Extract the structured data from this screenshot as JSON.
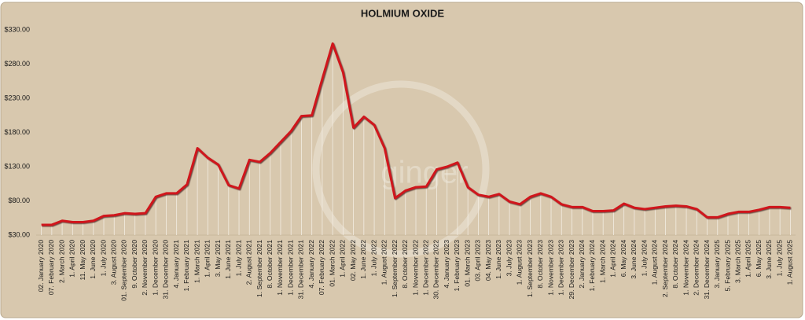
{
  "chart_data": {
    "type": "line",
    "title": "HOLMIUM OXIDE",
    "watermark": "ginger",
    "categories": [
      "02. January 2020",
      "07. February 2020",
      "2. March 2020",
      "1. April 2020",
      "11. May 2020",
      "1. June 2020",
      "1. July 2020",
      "3. August 2020",
      "01. September 2020",
      "9. October 2020",
      "2. November 2020",
      "1. December 2020",
      "31. December 2020",
      "4. January 2021",
      "1. February 2021",
      "1. March 2021",
      "1. April 2021",
      "3. May 2021",
      "1. June 2021",
      "1. July 2021",
      "2. August 2021",
      "1. September 2021",
      "8. October 2021",
      "1. November 2021",
      "1. December 2021",
      "31. December 2021",
      "4. January 2022",
      "07. February 2022",
      "01. March 2022",
      "1. April 2022",
      "02. May 2022",
      "1. June 2022",
      "1. July 2022",
      "1. August 2022",
      "1. September 2022",
      "8. October 2022",
      "1. November 2022",
      "1. December 2022",
      "30. December 2022",
      "4. January 2023",
      "1. February 2023",
      "01. March 2023",
      "03. April 2023",
      "04. May 2023",
      "1. June 2023",
      "3. July 2023",
      "1. August 2023",
      "1. September 2023",
      "8. October 2023",
      "1. November 2023",
      "1. December 2023",
      "29. December 2023",
      "2. January 2024",
      "1. February 2024",
      "1. March 2024",
      "1. April 2024",
      "6. May 2024",
      "3. June 2024",
      "1. July 2024",
      "1. August 2024",
      "2. September 2024",
      "8. October 2024",
      "1. November 2024",
      "2. December 2024",
      "31. December 2024",
      "3. January 2025",
      "5. February 2025",
      "3. March 2025",
      "1. April 2025",
      "6. May 2025",
      "3. June 2025",
      "1. July 2025",
      "1. August 2025"
    ],
    "series": [
      {
        "name": "Holmium Oxide",
        "color": "#d0161c",
        "values": [
          45,
          45,
          51,
          49,
          49,
          51,
          58,
          59,
          62,
          61,
          62,
          86,
          91,
          91,
          104,
          157,
          143,
          133,
          103,
          98,
          140,
          137,
          150,
          166,
          182,
          204,
          205,
          258,
          310,
          268,
          187,
          203,
          191,
          157,
          84,
          95,
          100,
          101,
          126,
          130,
          136,
          100,
          89,
          86,
          90,
          79,
          75,
          86,
          91,
          86,
          75,
          71,
          71,
          65,
          65,
          66,
          76,
          70,
          68,
          70,
          72,
          73,
          72,
          68,
          56,
          56,
          61,
          64,
          64,
          67,
          71,
          71,
          70
        ]
      }
    ],
    "ylim": [
      30,
      330
    ],
    "yticks": [
      {
        "value": 30,
        "label": "$30.00"
      },
      {
        "value": 80,
        "label": "$80.00"
      },
      {
        "value": 130,
        "label": "$130.00"
      },
      {
        "value": 180,
        "label": "$180.00"
      },
      {
        "value": 230,
        "label": "$230.00"
      },
      {
        "value": 280,
        "label": "$280.00"
      },
      {
        "value": 330,
        "label": "$330.00"
      }
    ],
    "drop_lines": true
  }
}
